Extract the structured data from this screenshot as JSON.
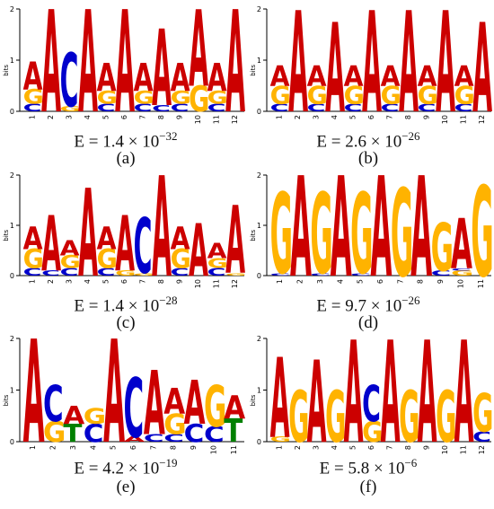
{
  "colors": {
    "A": "#cc0000",
    "C": "#0000cc",
    "G": "#ffb300",
    "T": "#008000"
  },
  "chart_data": [
    {
      "type": "sequence-logo",
      "label": "(a)",
      "evalue": {
        "base": "E = 1.4 × 10",
        "exp": "−32"
      },
      "ylabel": "bits",
      "ylim": [
        0,
        2
      ],
      "yticks": [
        "0",
        "1",
        "2"
      ],
      "positions": [
        "1",
        "2",
        "3",
        "4",
        "5",
        "6",
        "7",
        "8",
        "9",
        "10",
        "11",
        "12"
      ],
      "stacks": [
        [
          [
            "C",
            0.15
          ],
          [
            "G",
            0.28
          ],
          [
            "A",
            0.55
          ]
        ],
        [
          [
            "A",
            2.0
          ]
        ],
        [
          [
            "G",
            0.1
          ],
          [
            "C",
            1.05
          ]
        ],
        [
          [
            "A",
            2.0
          ]
        ],
        [
          [
            "C",
            0.15
          ],
          [
            "G",
            0.25
          ],
          [
            "A",
            0.55
          ]
        ],
        [
          [
            "A",
            2.0
          ]
        ],
        [
          [
            "C",
            0.15
          ],
          [
            "G",
            0.25
          ],
          [
            "A",
            0.55
          ]
        ],
        [
          [
            "C",
            0.12
          ],
          [
            "A",
            1.5
          ]
        ],
        [
          [
            "C",
            0.15
          ],
          [
            "G",
            0.25
          ],
          [
            "A",
            0.55
          ]
        ],
        [
          [
            "G",
            0.5
          ],
          [
            "A",
            1.5
          ]
        ],
        [
          [
            "C",
            0.15
          ],
          [
            "G",
            0.25
          ],
          [
            "A",
            0.55
          ]
        ],
        [
          [
            "A",
            2.0
          ]
        ]
      ]
    },
    {
      "type": "sequence-logo",
      "label": "(b)",
      "evalue": {
        "base": "E = 2.6 × 10",
        "exp": "−26"
      },
      "ylabel": "bits",
      "ylim": [
        0,
        2
      ],
      "yticks": [
        "0",
        "1",
        "2"
      ],
      "positions": [
        "1",
        "2",
        "3",
        "4",
        "5",
        "6",
        "7",
        "8",
        "9",
        "10",
        "11",
        "12"
      ],
      "stacks": [
        [
          [
            "C",
            0.15
          ],
          [
            "G",
            0.35
          ],
          [
            "A",
            0.4
          ]
        ],
        [
          [
            "A",
            1.98
          ]
        ],
        [
          [
            "C",
            0.15
          ],
          [
            "G",
            0.35
          ],
          [
            "A",
            0.4
          ]
        ],
        [
          [
            "A",
            1.75
          ]
        ],
        [
          [
            "C",
            0.15
          ],
          [
            "G",
            0.35
          ],
          [
            "A",
            0.4
          ]
        ],
        [
          [
            "A",
            1.98
          ]
        ],
        [
          [
            "C",
            0.15
          ],
          [
            "G",
            0.35
          ],
          [
            "A",
            0.4
          ]
        ],
        [
          [
            "A",
            1.98
          ]
        ],
        [
          [
            "C",
            0.15
          ],
          [
            "G",
            0.35
          ],
          [
            "A",
            0.4
          ]
        ],
        [
          [
            "A",
            1.98
          ]
        ],
        [
          [
            "C",
            0.15
          ],
          [
            "G",
            0.35
          ],
          [
            "A",
            0.4
          ]
        ],
        [
          [
            "A",
            1.75
          ]
        ]
      ]
    },
    {
      "type": "sequence-logo",
      "label": "(c)",
      "evalue": {
        "base": "E = 1.4 × 10",
        "exp": "−28"
      },
      "ylabel": "bits",
      "ylim": [
        0,
        2
      ],
      "yticks": [
        "0",
        "1",
        "2"
      ],
      "positions": [
        "1",
        "2",
        "3",
        "4",
        "5",
        "6",
        "7",
        "8",
        "9",
        "10",
        "11",
        "12"
      ],
      "stacks": [
        [
          [
            "C",
            0.15
          ],
          [
            "G",
            0.38
          ],
          [
            "A",
            0.45
          ]
        ],
        [
          [
            "C",
            0.1
          ],
          [
            "A",
            1.1
          ]
        ],
        [
          [
            "C",
            0.15
          ],
          [
            "G",
            0.25
          ],
          [
            "A",
            0.3
          ]
        ],
        [
          [
            "A",
            1.75
          ]
        ],
        [
          [
            "C",
            0.15
          ],
          [
            "G",
            0.38
          ],
          [
            "A",
            0.45
          ]
        ],
        [
          [
            "G",
            0.1
          ],
          [
            "A",
            1.1
          ]
        ],
        [
          [
            "G",
            0.05
          ],
          [
            "C",
            1.1
          ]
        ],
        [
          [
            "A",
            2.0
          ]
        ],
        [
          [
            "C",
            0.15
          ],
          [
            "G",
            0.38
          ],
          [
            "A",
            0.45
          ]
        ],
        [
          [
            "A",
            1.05
          ]
        ],
        [
          [
            "C",
            0.15
          ],
          [
            "G",
            0.2
          ],
          [
            "A",
            0.3
          ]
        ],
        [
          [
            "G",
            0.05
          ],
          [
            "A",
            1.35
          ]
        ]
      ]
    },
    {
      "type": "sequence-logo",
      "label": "(d)",
      "evalue": {
        "base": "E = 9.7 × 10",
        "exp": "−26"
      },
      "ylabel": "bits",
      "ylim": [
        0,
        2
      ],
      "yticks": [
        "0",
        "1",
        "2"
      ],
      "positions": [
        "1",
        "2",
        "3",
        "4",
        "5",
        "6",
        "7",
        "8",
        "9",
        "10",
        "11"
      ],
      "stacks": [
        [
          [
            "C",
            0.05
          ],
          [
            "G",
            1.6
          ]
        ],
        [
          [
            "A",
            2.0
          ]
        ],
        [
          [
            "C",
            0.05
          ],
          [
            "G",
            1.6
          ]
        ],
        [
          [
            "A",
            2.0
          ]
        ],
        [
          [
            "C",
            0.05
          ],
          [
            "G",
            1.6
          ]
        ],
        [
          [
            "A",
            2.0
          ]
        ],
        [
          [
            "G",
            1.75
          ]
        ],
        [
          [
            "A",
            2.0
          ]
        ],
        [
          [
            "C",
            0.1
          ],
          [
            "G",
            0.95
          ]
        ],
        [
          [
            "G",
            0.1
          ],
          [
            "C",
            0.05
          ],
          [
            "A",
            1.0
          ]
        ],
        [
          [
            "G",
            1.8
          ]
        ]
      ]
    },
    {
      "type": "sequence-logo",
      "label": "(e)",
      "evalue": {
        "base": "E = 4.2 × 10",
        "exp": "−19"
      },
      "ylabel": "bits",
      "ylim": [
        0,
        2
      ],
      "yticks": [
        "0",
        "1",
        "2"
      ],
      "positions": [
        "1",
        "2",
        "3",
        "4",
        "5",
        "6",
        "7",
        "8",
        "9",
        "10",
        "11"
      ],
      "stacks": [
        [
          [
            "A",
            2.0
          ]
        ],
        [
          [
            "G",
            0.4
          ],
          [
            "C",
            0.7
          ]
        ],
        [
          [
            "T",
            0.35
          ],
          [
            "A",
            0.35
          ]
        ],
        [
          [
            "C",
            0.35
          ],
          [
            "G",
            0.3
          ]
        ],
        [
          [
            "A",
            2.0
          ]
        ],
        [
          [
            "A",
            0.1
          ],
          [
            "C",
            1.15
          ]
        ],
        [
          [
            "C",
            0.15
          ],
          [
            "A",
            1.25
          ]
        ],
        [
          [
            "C",
            0.15
          ],
          [
            "G",
            0.4
          ],
          [
            "A",
            0.5
          ]
        ],
        [
          [
            "C",
            0.35
          ],
          [
            "A",
            0.85
          ]
        ],
        [
          [
            "C",
            0.3
          ],
          [
            "G",
            0.8
          ]
        ],
        [
          [
            "T",
            0.45
          ],
          [
            "A",
            0.45
          ]
        ]
      ]
    },
    {
      "type": "sequence-logo",
      "label": "(f)",
      "evalue": {
        "base": "E = 5.8 × 10",
        "exp": "−6"
      },
      "ylabel": "bits",
      "ylim": [
        0,
        2
      ],
      "yticks": [
        "0",
        "1",
        "2"
      ],
      "positions": [
        "1",
        "2",
        "3",
        "4",
        "5",
        "6",
        "7",
        "8",
        "9",
        "10",
        "11",
        "12"
      ],
      "stacks": [
        [
          [
            "G",
            0.1
          ],
          [
            "A",
            1.55
          ]
        ],
        [
          [
            "G",
            1.0
          ]
        ],
        [
          [
            "A",
            1.6
          ]
        ],
        [
          [
            "G",
            1.0
          ]
        ],
        [
          [
            "A",
            1.98
          ]
        ],
        [
          [
            "G",
            0.4
          ],
          [
            "C",
            0.7
          ]
        ],
        [
          [
            "A",
            1.98
          ]
        ],
        [
          [
            "G",
            1.0
          ]
        ],
        [
          [
            "A",
            1.98
          ]
        ],
        [
          [
            "G",
            1.0
          ]
        ],
        [
          [
            "A",
            1.98
          ]
        ],
        [
          [
            "C",
            0.2
          ],
          [
            "G",
            0.75
          ]
        ]
      ]
    }
  ]
}
